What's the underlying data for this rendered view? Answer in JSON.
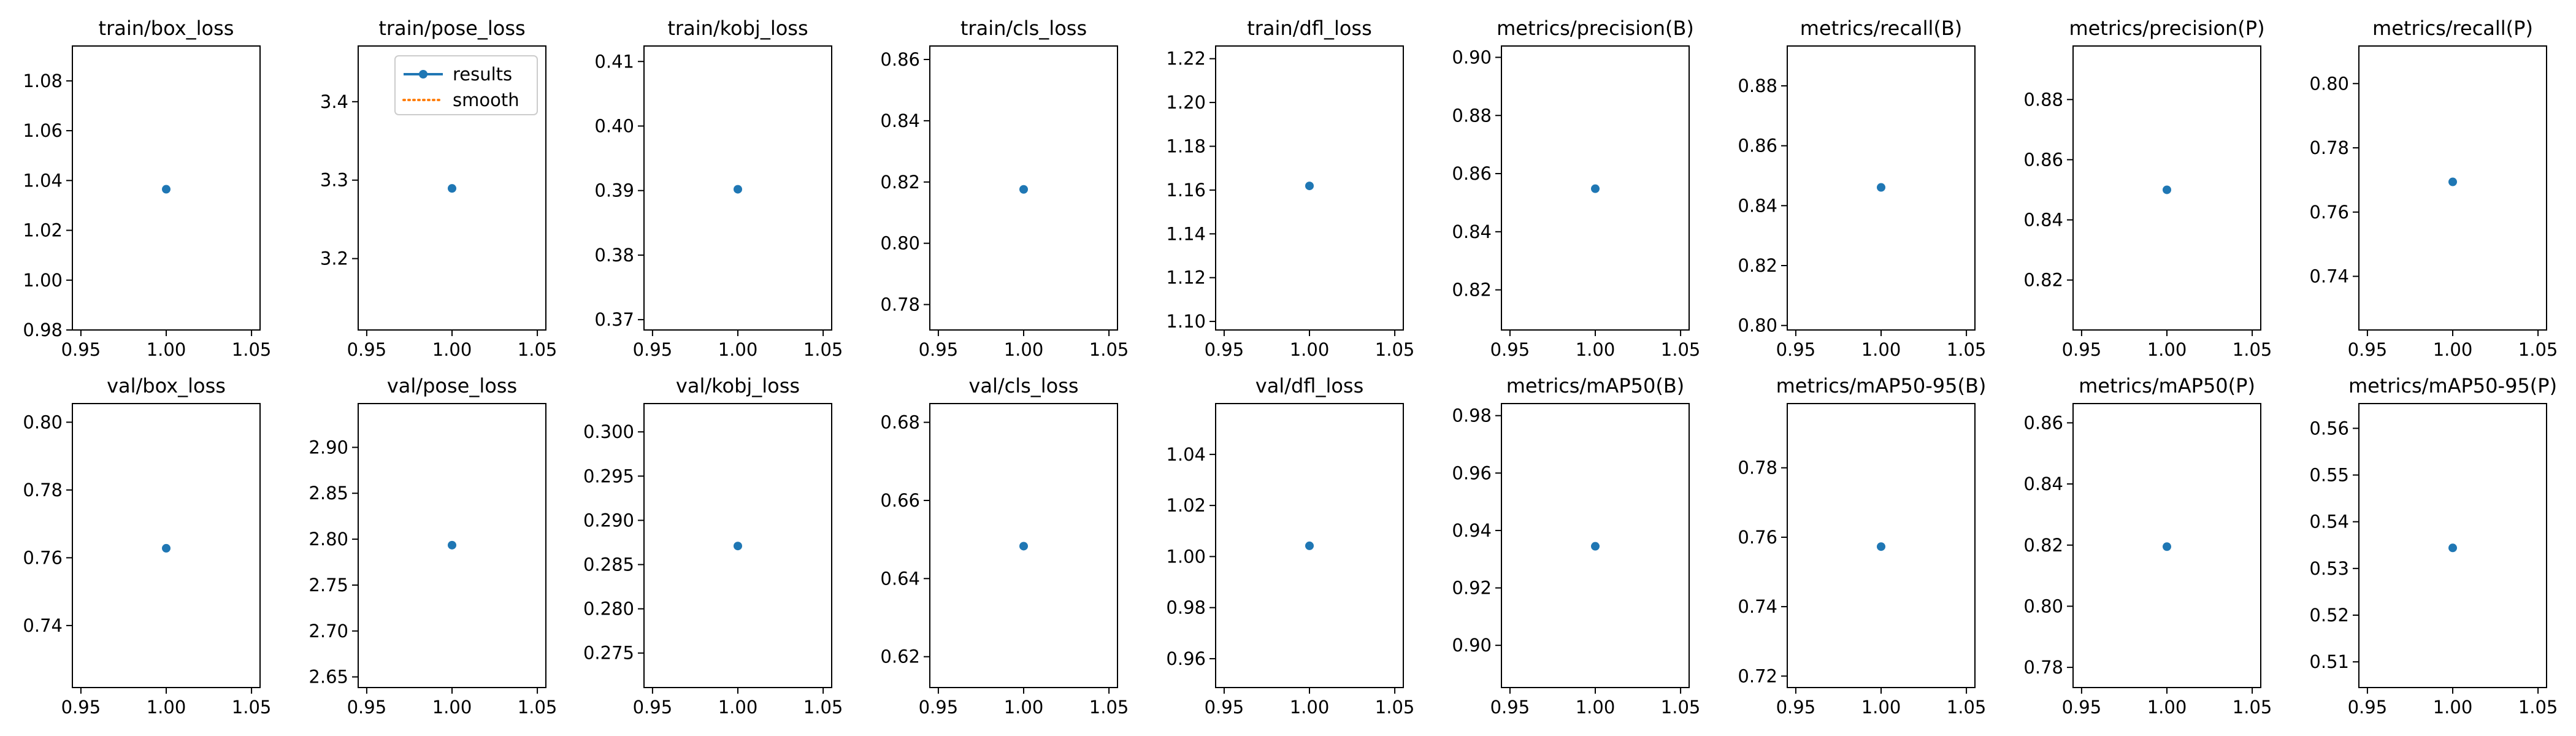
{
  "colors": {
    "results": "#1f77b4",
    "smooth": "#ff7f0e",
    "axes": "#000000",
    "background": "#ffffff"
  },
  "legend": {
    "placement": "top-right of train/pose_loss panel",
    "entries": [
      {
        "label": "results",
        "style": "solid-line-with-marker"
      },
      {
        "label": "smooth",
        "style": "dotted-line"
      }
    ]
  },
  "chart_data": [
    {
      "type": "line",
      "title": "train/box_loss",
      "x": [
        1.0
      ],
      "y": [
        1.0365
      ],
      "xlim": [
        0.945,
        1.055
      ],
      "xticks": [
        "0.95",
        "1.00",
        "1.05"
      ],
      "ylim": [
        0.98,
        1.094
      ],
      "yticks": [
        "0.98",
        "1.00",
        "1.02",
        "1.04",
        "1.06",
        "1.08"
      ]
    },
    {
      "type": "line",
      "title": "train/pose_loss",
      "x": [
        1.0
      ],
      "y": [
        3.2895
      ],
      "xlim": [
        0.945,
        1.055
      ],
      "xticks": [
        "0.95",
        "1.00",
        "1.05"
      ],
      "ylim": [
        3.109,
        3.471
      ],
      "yticks": [
        "3.2",
        "3.3",
        "3.4"
      ]
    },
    {
      "type": "line",
      "title": "train/kobj_loss",
      "x": [
        1.0
      ],
      "y": [
        0.3902
      ],
      "xlim": [
        0.945,
        1.055
      ],
      "xticks": [
        "0.95",
        "1.00",
        "1.05"
      ],
      "ylim": [
        0.3684,
        0.4124
      ],
      "yticks": [
        "0.37",
        "0.38",
        "0.39",
        "0.40",
        "0.41"
      ]
    },
    {
      "type": "line",
      "title": "train/cls_loss",
      "x": [
        1.0
      ],
      "y": [
        0.8176
      ],
      "xlim": [
        0.945,
        1.055
      ],
      "xticks": [
        "0.95",
        "1.00",
        "1.05"
      ],
      "ylim": [
        0.7717,
        0.8644
      ],
      "yticks": [
        "0.78",
        "0.80",
        "0.82",
        "0.84",
        "0.86"
      ]
    },
    {
      "type": "line",
      "title": "train/dfl_loss",
      "x": [
        1.0
      ],
      "y": [
        1.1619
      ],
      "xlim": [
        0.945,
        1.055
      ],
      "xticks": [
        "0.95",
        "1.00",
        "1.05"
      ],
      "ylim": [
        1.0961,
        1.2258
      ],
      "yticks": [
        "1.10",
        "1.12",
        "1.14",
        "1.16",
        "1.18",
        "1.20",
        "1.22"
      ]
    },
    {
      "type": "line",
      "title": "metrics/precision(B)",
      "x": [
        1.0
      ],
      "y": [
        0.8548
      ],
      "xlim": [
        0.945,
        1.055
      ],
      "xticks": [
        "0.95",
        "1.00",
        "1.05"
      ],
      "ylim": [
        0.8062,
        0.9039
      ],
      "yticks": [
        "0.82",
        "0.84",
        "0.86",
        "0.88",
        "0.90"
      ]
    },
    {
      "type": "line",
      "title": "metrics/recall(B)",
      "x": [
        1.0
      ],
      "y": [
        0.8461
      ],
      "xlim": [
        0.945,
        1.055
      ],
      "xticks": [
        "0.95",
        "1.00",
        "1.05"
      ],
      "ylim": [
        0.7985,
        0.8933
      ],
      "yticks": [
        "0.80",
        "0.82",
        "0.84",
        "0.86",
        "0.88"
      ]
    },
    {
      "type": "line",
      "title": "metrics/precision(P)",
      "x": [
        1.0
      ],
      "y": [
        0.85
      ],
      "xlim": [
        0.945,
        1.055
      ],
      "xticks": [
        "0.95",
        "1.00",
        "1.05"
      ],
      "ylim": [
        0.8034,
        0.8978
      ],
      "yticks": [
        "0.82",
        "0.84",
        "0.86",
        "0.88"
      ]
    },
    {
      "type": "line",
      "title": "metrics/recall(P)",
      "x": [
        1.0
      ],
      "y": [
        0.7694
      ],
      "xlim": [
        0.945,
        1.055
      ],
      "xticks": [
        "0.95",
        "1.00",
        "1.05"
      ],
      "ylim": [
        0.7233,
        0.8117
      ],
      "yticks": [
        "0.74",
        "0.76",
        "0.78",
        "0.80"
      ]
    },
    {
      "type": "line",
      "title": "val/box_loss",
      "x": [
        1.0
      ],
      "y": [
        0.7628
      ],
      "xlim": [
        0.945,
        1.055
      ],
      "xticks": [
        "0.95",
        "1.00",
        "1.05"
      ],
      "ylim": [
        0.7217,
        0.8055
      ],
      "yticks": [
        "0.74",
        "0.76",
        "0.78",
        "0.80"
      ]
    },
    {
      "type": "line",
      "title": "val/pose_loss",
      "x": [
        1.0
      ],
      "y": [
        2.7935
      ],
      "xlim": [
        0.945,
        1.055
      ],
      "xticks": [
        "0.95",
        "1.00",
        "1.05"
      ],
      "ylim": [
        2.6384,
        2.9477
      ],
      "yticks": [
        "2.65",
        "2.70",
        "2.75",
        "2.80",
        "2.85",
        "2.90"
      ]
    },
    {
      "type": "line",
      "title": "val/kobj_loss",
      "x": [
        1.0
      ],
      "y": [
        0.2871
      ],
      "xlim": [
        0.945,
        1.055
      ],
      "xticks": [
        "0.95",
        "1.00",
        "1.05"
      ],
      "ylim": [
        0.2711,
        0.3032
      ],
      "yticks": [
        "0.275",
        "0.280",
        "0.285",
        "0.290",
        "0.295",
        "0.300"
      ]
    },
    {
      "type": "line",
      "title": "val/cls_loss",
      "x": [
        1.0
      ],
      "y": [
        0.6483
      ],
      "xlim": [
        0.945,
        1.055
      ],
      "xticks": [
        "0.95",
        "1.00",
        "1.05"
      ],
      "ylim": [
        0.6121,
        0.6848
      ],
      "yticks": [
        "0.62",
        "0.64",
        "0.66",
        "0.68"
      ]
    },
    {
      "type": "line",
      "title": "val/dfl_loss",
      "x": [
        1.0
      ],
      "y": [
        1.0042
      ],
      "xlim": [
        0.945,
        1.055
      ],
      "xticks": [
        "0.95",
        "1.00",
        "1.05"
      ],
      "ylim": [
        0.9487,
        1.0599
      ],
      "yticks": [
        "0.96",
        "0.98",
        "1.00",
        "1.02",
        "1.04"
      ]
    },
    {
      "type": "line",
      "title": "metrics/mAP50(B)",
      "x": [
        1.0
      ],
      "y": [
        0.9345
      ],
      "xlim": [
        0.945,
        1.055
      ],
      "xticks": [
        "0.95",
        "1.00",
        "1.05"
      ],
      "ylim": [
        0.8853,
        0.9842
      ],
      "yticks": [
        "0.90",
        "0.92",
        "0.94",
        "0.96",
        "0.98"
      ]
    },
    {
      "type": "line",
      "title": "metrics/mAP50-95(B)",
      "x": [
        1.0
      ],
      "y": [
        0.7573
      ],
      "xlim": [
        0.945,
        1.055
      ],
      "xticks": [
        "0.95",
        "1.00",
        "1.05"
      ],
      "ylim": [
        0.7167,
        0.7985
      ],
      "yticks": [
        "0.72",
        "0.74",
        "0.76",
        "0.78"
      ]
    },
    {
      "type": "line",
      "title": "metrics/mAP50(P)",
      "x": [
        1.0
      ],
      "y": [
        0.8195
      ],
      "xlim": [
        0.945,
        1.055
      ],
      "xticks": [
        "0.95",
        "1.00",
        "1.05"
      ],
      "ylim": [
        0.7734,
        0.8663
      ],
      "yticks": [
        "0.78",
        "0.80",
        "0.82",
        "0.84",
        "0.86"
      ]
    },
    {
      "type": "line",
      "title": "metrics/mAP50-95(P)",
      "x": [
        1.0
      ],
      "y": [
        0.5344
      ],
      "xlim": [
        0.945,
        1.055
      ],
      "xticks": [
        "0.95",
        "1.00",
        "1.05"
      ],
      "ylim": [
        0.5045,
        0.5653
      ],
      "yticks": [
        "0.51",
        "0.52",
        "0.53",
        "0.54",
        "0.55",
        "0.56"
      ]
    }
  ]
}
